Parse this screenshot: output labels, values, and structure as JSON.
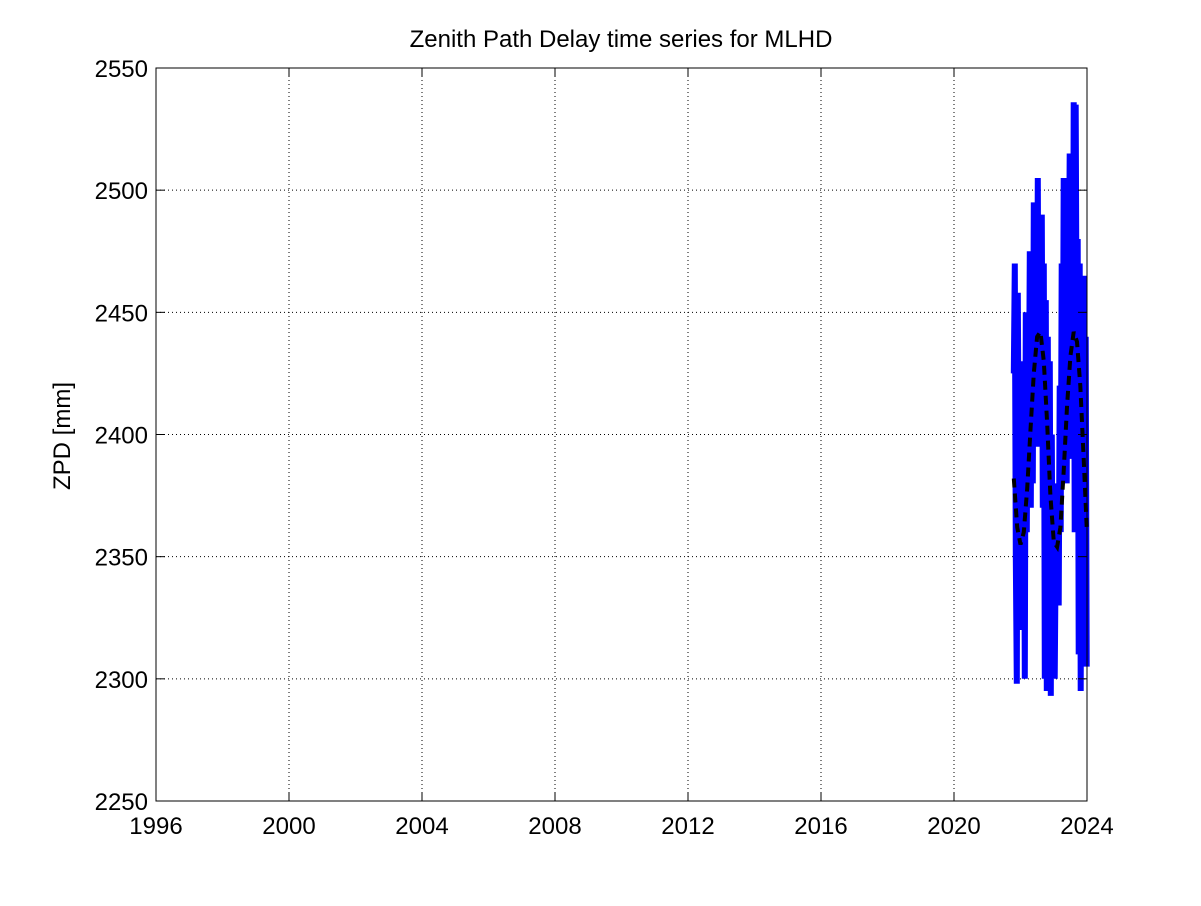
{
  "chart_data": {
    "type": "line",
    "title": "Zenith Path Delay time series for MLHD",
    "xlabel": "",
    "ylabel": "ZPD [mm]",
    "xlim": [
      1996,
      2024
    ],
    "ylim": [
      2250,
      2550
    ],
    "xticks": [
      "1996",
      "2000",
      "2004",
      "2008",
      "2012",
      "2016",
      "2020",
      "2024"
    ],
    "yticks": [
      "2250",
      "2300",
      "2350",
      "2400",
      "2450",
      "2500",
      "2550"
    ],
    "grid": true,
    "legend": "none",
    "series": [
      {
        "style": "solid",
        "color": "#0000ff",
        "x": [
          2021.8,
          2021.83,
          2021.86,
          2021.89,
          2021.92,
          2021.95,
          2021.98,
          2022.01,
          2022.04,
          2022.07,
          2022.1,
          2022.13,
          2022.16,
          2022.19,
          2022.22,
          2022.25,
          2022.28,
          2022.31,
          2022.34,
          2022.37,
          2022.4,
          2022.43,
          2022.46,
          2022.49,
          2022.52,
          2022.55,
          2022.58,
          2022.61,
          2022.64,
          2022.67,
          2022.7,
          2022.73,
          2022.76,
          2022.79,
          2022.82,
          2022.85,
          2022.88,
          2022.91,
          2022.94,
          2022.97,
          2023.0,
          2023.03,
          2023.06,
          2023.09,
          2023.12,
          2023.15,
          2023.18,
          2023.21,
          2023.24,
          2023.27,
          2023.3,
          2023.33,
          2023.36,
          2023.39,
          2023.42,
          2023.45,
          2023.48,
          2023.51,
          2023.54,
          2023.57,
          2023.6,
          2023.63,
          2023.66,
          2023.69,
          2023.72,
          2023.75,
          2023.78,
          2023.81,
          2023.84,
          2023.87,
          2023.9,
          2023.93,
          2023.96,
          2023.99
        ],
        "values": [
          2425,
          2470,
          2350,
          2298,
          2458,
          2380,
          2410,
          2320,
          2405,
          2335,
          2430,
          2300,
          2450,
          2360,
          2445,
          2400,
          2475,
          2370,
          2470,
          2380,
          2495,
          2410,
          2470,
          2400,
          2505,
          2395,
          2460,
          2440,
          2490,
          2370,
          2470,
          2300,
          2455,
          2295,
          2440,
          2310,
          2430,
          2293,
          2400,
          2310,
          2380,
          2300,
          2350,
          2340,
          2360,
          2330,
          2420,
          2360,
          2470,
          2395,
          2505,
          2430,
          2500,
          2380,
          2470,
          2450,
          2515,
          2420,
          2480,
          2390,
          2536,
          2360,
          2535,
          2430,
          2480,
          2310,
          2470,
          2295,
          2430,
          2305,
          2465,
          2320,
          2440,
          2305
        ]
      },
      {
        "style": "dashed",
        "color": "#000000",
        "x": [
          2021.8,
          2021.9,
          2022.0,
          2022.1,
          2022.2,
          2022.3,
          2022.4,
          2022.5,
          2022.6,
          2022.7,
          2022.8,
          2022.9,
          2023.0,
          2023.1,
          2023.2,
          2023.3,
          2023.4,
          2023.5,
          2023.6,
          2023.7,
          2023.8,
          2023.9,
          2023.99
        ],
        "values": [
          2382,
          2362,
          2355,
          2360,
          2378,
          2402,
          2425,
          2440,
          2442,
          2430,
          2405,
          2375,
          2356,
          2354,
          2362,
          2385,
          2412,
          2432,
          2442,
          2438,
          2420,
          2390,
          2362
        ]
      }
    ]
  }
}
